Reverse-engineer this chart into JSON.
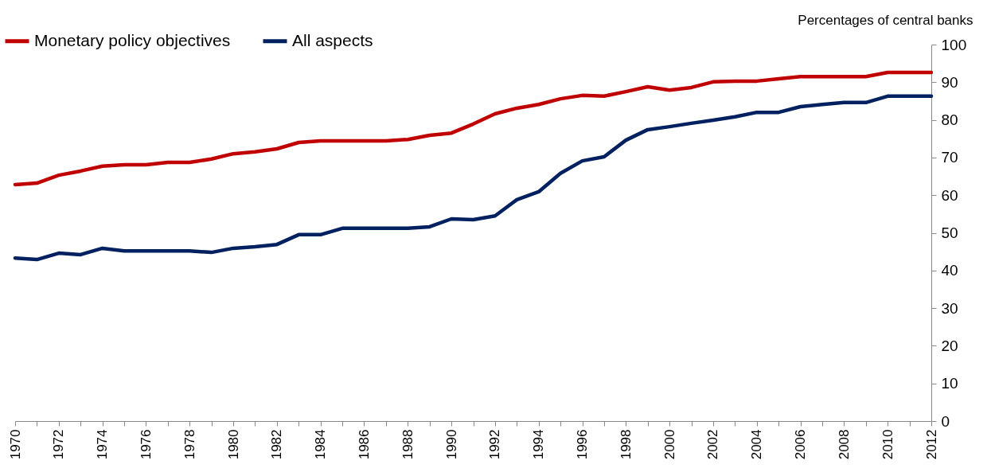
{
  "chart_data": {
    "type": "line",
    "ylabel": "Percentages of central banks",
    "x": [
      1970,
      1971,
      1972,
      1973,
      1974,
      1975,
      1976,
      1977,
      1978,
      1979,
      1980,
      1981,
      1982,
      1983,
      1984,
      1985,
      1986,
      1987,
      1988,
      1989,
      1990,
      1991,
      1992,
      1993,
      1994,
      1995,
      1996,
      1997,
      1998,
      1999,
      2000,
      2001,
      2002,
      2003,
      2004,
      2005,
      2006,
      2007,
      2008,
      2009,
      2010,
      2011,
      2012
    ],
    "series": [
      {
        "name": "Monetary policy objectives",
        "color": "#c00000",
        "values": [
          62.8,
          63.2,
          65.3,
          66.4,
          67.7,
          68.1,
          68.1,
          68.7,
          68.7,
          69.6,
          71.0,
          71.5,
          72.3,
          74.0,
          74.4,
          74.4,
          74.4,
          74.4,
          74.8,
          75.9,
          76.5,
          78.9,
          81.6,
          83.1,
          84.1,
          85.6,
          86.5,
          86.3,
          87.5,
          88.8,
          87.9,
          88.6,
          90.1,
          90.3,
          90.3,
          90.9,
          91.5,
          91.5,
          91.5,
          91.5,
          92.6,
          92.6,
          92.6
        ]
      },
      {
        "name": "All aspects",
        "color": "#002060",
        "values": [
          43.3,
          42.9,
          44.6,
          44.2,
          45.9,
          45.2,
          45.2,
          45.2,
          45.2,
          44.8,
          45.9,
          46.3,
          46.9,
          49.5,
          49.5,
          51.2,
          51.2,
          51.2,
          51.2,
          51.6,
          53.7,
          53.5,
          54.5,
          58.8,
          60.9,
          65.8,
          69.1,
          70.2,
          74.6,
          77.4,
          78.2,
          79.1,
          79.9,
          80.8,
          82.0,
          82.0,
          83.5,
          84.1,
          84.6,
          84.6,
          86.3,
          86.3,
          86.3
        ]
      }
    ],
    "xlim": [
      1970,
      2012
    ],
    "xticks": [
      1970,
      {
        "value": 1971,
        "label": null
      },
      1972,
      {
        "value": 1973,
        "label": null
      },
      1974,
      {
        "value": 1975,
        "label": null
      },
      1976,
      {
        "value": 1977,
        "label": null
      },
      1978,
      {
        "value": 1979,
        "label": null
      },
      1980,
      {
        "value": 1981,
        "label": null
      },
      1982,
      {
        "value": 1983,
        "label": null
      },
      1984,
      {
        "value": 1985,
        "label": null
      },
      1986,
      {
        "value": 1987,
        "label": null
      },
      1988,
      {
        "value": 1989,
        "label": null
      },
      1990,
      {
        "value": 1991,
        "label": null
      },
      1992,
      {
        "value": 1993,
        "label": null
      },
      1994,
      {
        "value": 1995,
        "label": null
      },
      1996,
      {
        "value": 1997,
        "label": null
      },
      1998,
      {
        "value": 1999,
        "label": null
      },
      2000,
      {
        "value": 2001,
        "label": null
      },
      2002,
      {
        "value": 2003,
        "label": null
      },
      2004,
      {
        "value": 2005,
        "label": null
      },
      2006,
      {
        "value": 2007,
        "label": null
      },
      2008,
      {
        "value": 2009,
        "label": null
      },
      2010,
      {
        "value": 2011,
        "label": null
      },
      2012
    ],
    "ylim": [
      0,
      100
    ],
    "yticks": [
      0,
      10,
      20,
      30,
      40,
      50,
      60,
      70,
      80,
      90,
      100
    ],
    "grid": false,
    "legend": "top left",
    "marker": "none",
    "line_style": "solid"
  }
}
